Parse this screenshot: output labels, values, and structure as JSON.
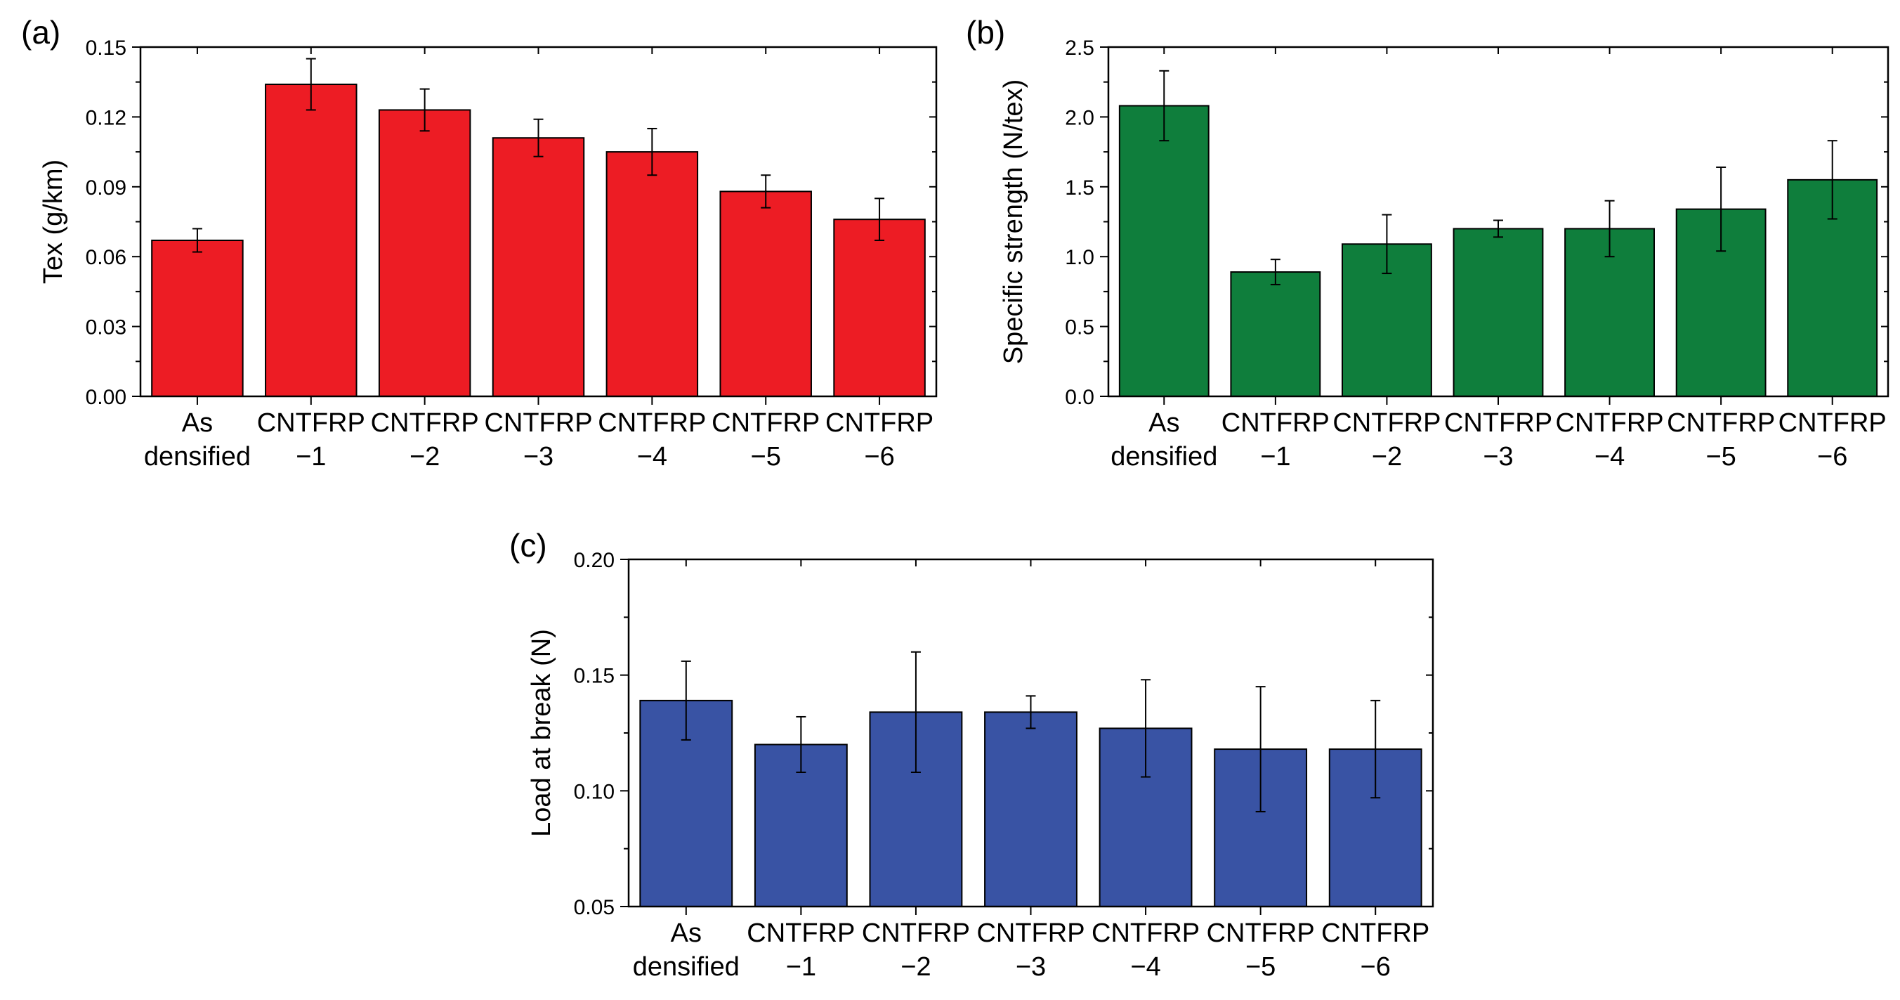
{
  "chart_data": [
    {
      "panel_label": "(a)",
      "type": "bar",
      "categories": [
        [
          "As",
          "densified"
        ],
        [
          "CNTFRP",
          "−1"
        ],
        [
          "CNTFRP",
          "−2"
        ],
        [
          "CNTFRP",
          "−3"
        ],
        [
          "CNTFRP",
          "−4"
        ],
        [
          "CNTFRP",
          "−5"
        ],
        [
          "CNTFRP",
          "−6"
        ]
      ],
      "values": [
        0.067,
        0.134,
        0.123,
        0.111,
        0.105,
        0.088,
        0.076
      ],
      "errors": [
        0.005,
        0.011,
        0.009,
        0.008,
        0.01,
        0.007,
        0.009
      ],
      "ylabel": "Tex (g/km)",
      "xlabel": "",
      "ylim": [
        0,
        0.15
      ],
      "yticks": [
        "0.00",
        "0.03",
        "0.06",
        "0.09",
        "0.12",
        "0.15"
      ],
      "bar_color": "#ed1c24",
      "grid": false
    },
    {
      "panel_label": "(b)",
      "type": "bar",
      "categories": [
        [
          "As",
          "densified"
        ],
        [
          "CNTFRP",
          "−1"
        ],
        [
          "CNTFRP",
          "−2"
        ],
        [
          "CNTFRP",
          "−3"
        ],
        [
          "CNTFRP",
          "−4"
        ],
        [
          "CNTFRP",
          "−5"
        ],
        [
          "CNTFRP",
          "−6"
        ]
      ],
      "values": [
        2.08,
        0.89,
        1.09,
        1.2,
        1.2,
        1.34,
        1.55
      ],
      "errors": [
        0.25,
        0.09,
        0.21,
        0.06,
        0.2,
        0.3,
        0.28
      ],
      "ylabel": "Specific strength (N/tex)",
      "xlabel": "",
      "ylim": [
        0,
        2.5
      ],
      "yticks": [
        "0.0",
        "0.5",
        "1.0",
        "1.5",
        "2.0",
        "2.5"
      ],
      "bar_color": "#0f7e3c",
      "grid": false
    },
    {
      "panel_label": "(c)",
      "type": "bar",
      "categories": [
        [
          "As",
          "densified"
        ],
        [
          "CNTFRP",
          "−1"
        ],
        [
          "CNTFRP",
          "−2"
        ],
        [
          "CNTFRP",
          "−3"
        ],
        [
          "CNTFRP",
          "−4"
        ],
        [
          "CNTFRP",
          "−5"
        ],
        [
          "CNTFRP",
          "−6"
        ]
      ],
      "values": [
        0.139,
        0.12,
        0.134,
        0.134,
        0.127,
        0.118,
        0.118
      ],
      "errors": [
        0.017,
        0.012,
        0.026,
        0.007,
        0.021,
        0.027,
        0.021
      ],
      "ylabel": "Load at break (N)",
      "xlabel": "",
      "ylim": [
        0.05,
        0.2
      ],
      "yticks": [
        "0.05",
        "0.10",
        "0.15",
        "0.20"
      ],
      "bar_color": "#3953a4",
      "grid": false
    }
  ]
}
